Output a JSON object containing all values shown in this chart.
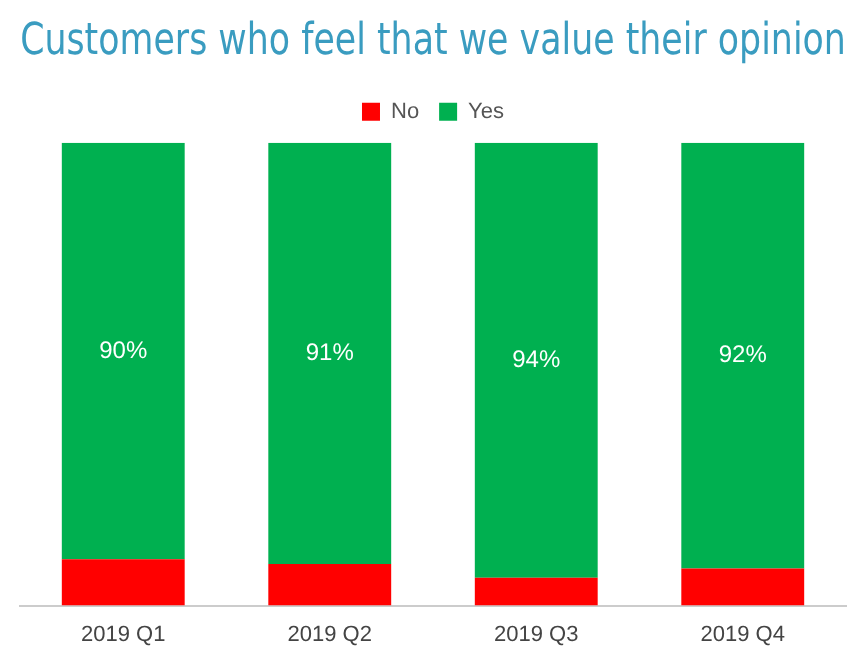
{
  "chart_data": {
    "type": "bar",
    "title": "Customers who feel that we value their opinion",
    "categories": [
      "2019 Q1",
      "2019 Q2",
      "2019 Q3",
      "2019 Q4"
    ],
    "stacked": true,
    "legend": "top",
    "grid": false,
    "series": [
      {
        "name": "No",
        "color": "#ff0000",
        "values": [
          10,
          9,
          6,
          8
        ]
      },
      {
        "name": "Yes",
        "color": "#00b050",
        "values": [
          90,
          91,
          94,
          92
        ],
        "value_labels": [
          "90%",
          "91%",
          "94%",
          "92%"
        ]
      }
    ]
  }
}
